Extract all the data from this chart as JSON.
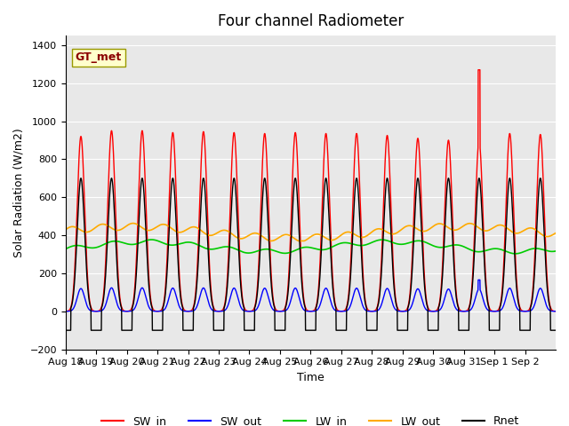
{
  "title": "Four channel Radiometer",
  "xlabel": "Time",
  "ylabel": "Solar Radiation (W/m2)",
  "ylim": [
    -200,
    1450
  ],
  "yticks": [
    -200,
    0,
    200,
    400,
    600,
    800,
    1000,
    1200,
    1400
  ],
  "bg_color": "#e8e8e8",
  "legend_entries": [
    "SW_in",
    "SW_out",
    "LW_in",
    "LW_out",
    "Rnet"
  ],
  "line_colors": [
    "#ff0000",
    "#0000ff",
    "#00cc00",
    "#ffaa00",
    "#000000"
  ],
  "annotation_text": "GT_met",
  "n_days": 16,
  "x_labels": [
    "Aug 18",
    "Aug 19",
    "Aug 20",
    "Aug 21",
    "Aug 22",
    "Aug 23",
    "Aug 24",
    "Aug 25",
    "Aug 26",
    "Aug 27",
    "Aug 28",
    "Aug 29",
    "Aug 30",
    "Aug 31",
    "Sep 1",
    "Sep 2"
  ],
  "spike_day": 13,
  "sw_in_peaks": [
    920,
    950,
    950,
    940,
    945,
    940,
    935,
    940,
    935,
    935,
    925,
    910,
    900,
    895,
    935,
    930
  ]
}
